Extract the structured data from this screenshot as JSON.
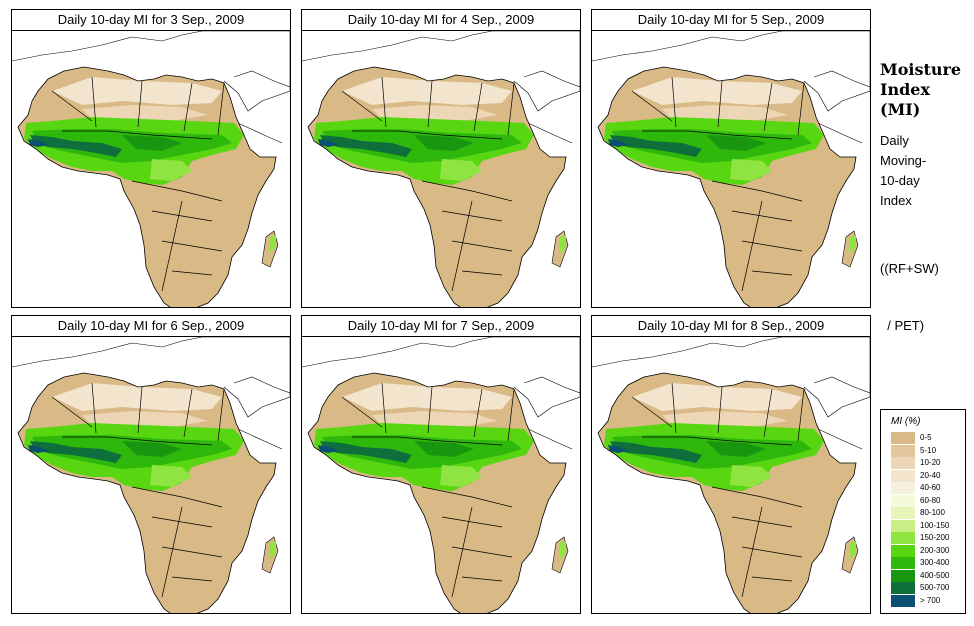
{
  "panels": [
    {
      "title": "Daily 10-day MI for  3 Sep., 2009"
    },
    {
      "title": "Daily 10-day MI for  4 Sep., 2009"
    },
    {
      "title": "Daily 10-day MI for  5 Sep., 2009"
    },
    {
      "title": "Daily 10-day MI for  6 Sep., 2009"
    },
    {
      "title": "Daily 10-day MI for  7 Sep., 2009"
    },
    {
      "title": "Daily 10-day MI for  8 Sep., 2009"
    }
  ],
  "side": {
    "title_lines": [
      "Moisture",
      "Index",
      "(MI)"
    ],
    "desc_lines": [
      "Daily",
      "Moving-",
      "10-day",
      "Index"
    ],
    "formula_lines": [
      "((RF+SW)",
      "  / PET)"
    ]
  },
  "legend": {
    "title": "MI (%)",
    "items": [
      {
        "label": "0-5",
        "color": "#d9b985"
      },
      {
        "label": "5-10",
        "color": "#e2c79d"
      },
      {
        "label": "10-20",
        "color": "#ecd6b5"
      },
      {
        "label": "20-40",
        "color": "#f3e4cd"
      },
      {
        "label": "40-60",
        "color": "#f8f0df"
      },
      {
        "label": "60-80",
        "color": "#f4fbd8"
      },
      {
        "label": "80-100",
        "color": "#e5f7b8"
      },
      {
        "label": "100-150",
        "color": "#c9ef86"
      },
      {
        "label": "150-200",
        "color": "#90e441"
      },
      {
        "label": "200-300",
        "color": "#58d612"
      },
      {
        "label": "300-400",
        "color": "#2eb80c"
      },
      {
        "label": "400-500",
        "color": "#18960f"
      },
      {
        "label": "500-700",
        "color": "#0f6f3c"
      },
      {
        "label": "> 700",
        "color": "#0b4f73"
      }
    ]
  }
}
